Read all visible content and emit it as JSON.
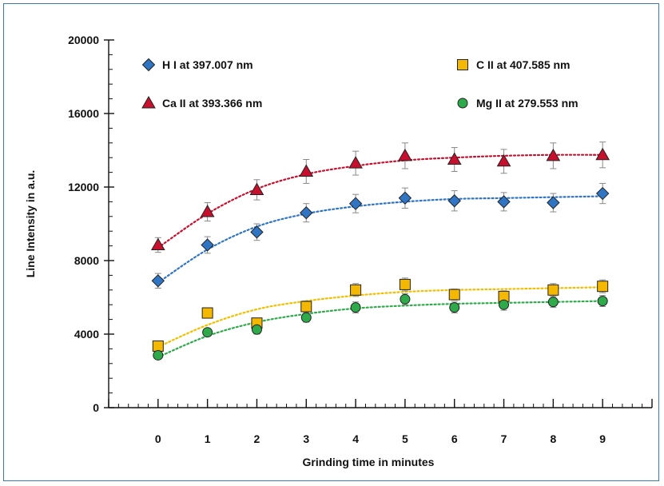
{
  "chart_data": {
    "type": "scatter",
    "xlabel": "Grinding time in minutes",
    "ylabel": "Line Intensity in a.u.",
    "xlim": [
      -1,
      10
    ],
    "ylim": [
      0,
      20000
    ],
    "x_ticks": [
      0,
      1,
      2,
      3,
      4,
      5,
      6,
      7,
      8,
      9
    ],
    "y_ticks": [
      0,
      4000,
      8000,
      12000,
      16000,
      20000
    ],
    "y_minor_step": 800,
    "x_minor_step": 0.2,
    "grid": false,
    "legend_placement": "top",
    "trendline_style": "dotted",
    "series": [
      {
        "name": "H I at 397.007 nm",
        "marker": "diamond",
        "color": "#2f75c4",
        "line_color": "#2f75c4",
        "x": [
          0,
          1,
          2,
          3,
          4,
          5,
          6,
          7,
          8,
          9
        ],
        "y": [
          6900,
          8850,
          9550,
          10600,
          11100,
          11400,
          11250,
          11200,
          11150,
          11650
        ],
        "error": [
          400,
          450,
          450,
          500,
          500,
          550,
          550,
          500,
          500,
          550
        ],
        "fit": [
          6800,
          8600,
          9850,
          10550,
          10950,
          11200,
          11350,
          11400,
          11450,
          11500
        ]
      },
      {
        "name": "C II at 407.585 nm",
        "marker": "square",
        "color": "#f5b800",
        "line_color": "#f0c000",
        "x": [
          0,
          1,
          2,
          3,
          4,
          5,
          6,
          7,
          8,
          9
        ],
        "y": [
          3350,
          5150,
          4600,
          5500,
          6400,
          6700,
          6150,
          6050,
          6400,
          6600
        ],
        "error": [
          250,
          250,
          250,
          300,
          350,
          350,
          300,
          300,
          350,
          350
        ],
        "fit": [
          3300,
          4500,
          5350,
          5800,
          6100,
          6300,
          6400,
          6450,
          6500,
          6550
        ]
      },
      {
        "name": "Ca II at 393.366 nm",
        "marker": "triangle",
        "color": "#c8102e",
        "line_color": "#c8102e",
        "x": [
          0,
          1,
          2,
          3,
          4,
          5,
          6,
          7,
          8,
          9
        ],
        "y": [
          8850,
          10650,
          11850,
          12850,
          13300,
          13700,
          13500,
          13400,
          13700,
          13750
        ],
        "error": [
          400,
          500,
          550,
          650,
          650,
          700,
          650,
          650,
          700,
          700
        ],
        "fit": [
          8700,
          10550,
          11900,
          12700,
          13150,
          13450,
          13600,
          13700,
          13750,
          13750
        ]
      },
      {
        "name": "Mg II at 279.553 nm",
        "marker": "circle",
        "color": "#2eaa4a",
        "line_color": "#2eaa4a",
        "x": [
          0,
          1,
          2,
          3,
          4,
          5,
          6,
          7,
          8,
          9
        ],
        "y": [
          2850,
          4100,
          4250,
          4900,
          5450,
          5900,
          5450,
          5600,
          5750,
          5800
        ],
        "error": [
          200,
          200,
          250,
          250,
          300,
          300,
          300,
          300,
          300,
          300
        ],
        "fit": [
          2750,
          3900,
          4650,
          5100,
          5400,
          5550,
          5650,
          5700,
          5750,
          5800
        ]
      }
    ]
  }
}
